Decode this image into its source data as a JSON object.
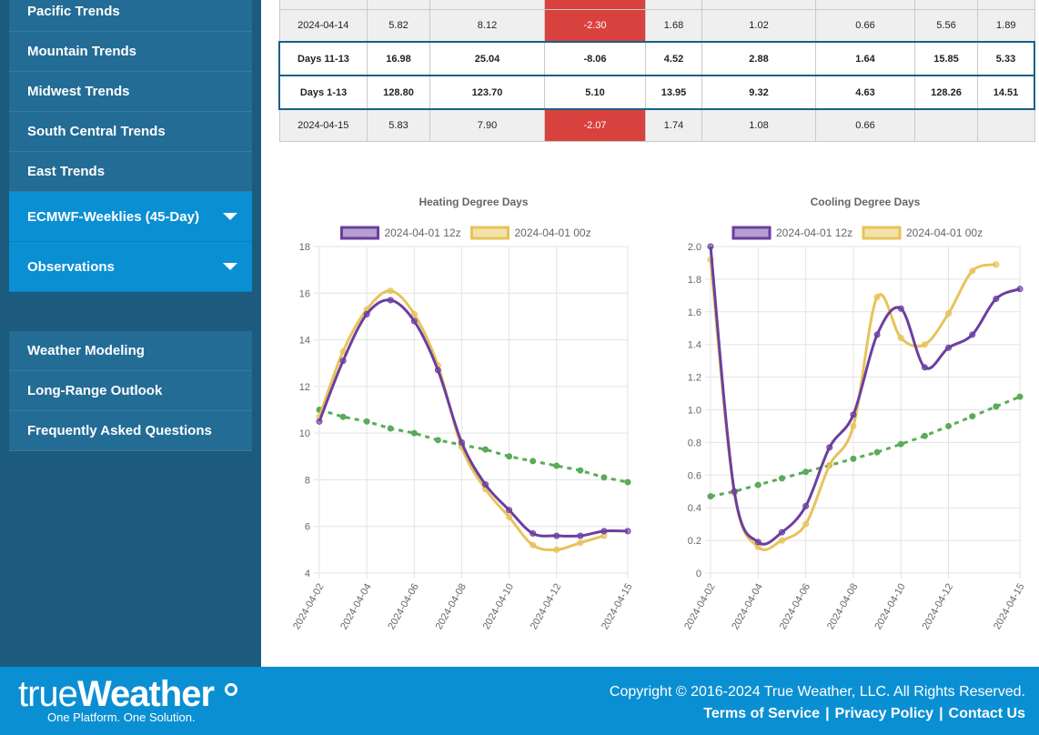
{
  "sidebar": {
    "group1": [
      {
        "label": "Pacific Trends",
        "active": false
      },
      {
        "label": "Mountain Trends",
        "active": false
      },
      {
        "label": "Midwest Trends",
        "active": false
      },
      {
        "label": "South Central Trends",
        "active": false
      },
      {
        "label": "East Trends",
        "active": false
      },
      {
        "label": "ECMWF-Weeklies (45-Day)",
        "active": true
      },
      {
        "label": "Observations",
        "active": true
      }
    ],
    "group2": [
      {
        "label": "Weather Modeling"
      },
      {
        "label": "Long-Range Outlook"
      },
      {
        "label": "Frequently Asked Questions"
      }
    ]
  },
  "table": {
    "rows": [
      {
        "cells": [
          "",
          "",
          "",
          "",
          "",
          "",
          "",
          "",
          ""
        ],
        "neg": 3,
        "highlight": false
      },
      {
        "cells": [
          "2024-04-14",
          "5.82",
          "8.12",
          "-2.30",
          "1.68",
          "1.02",
          "0.66",
          "5.56",
          "1.89"
        ],
        "neg": 3,
        "highlight": false
      },
      {
        "cells": [
          "Days 11-13",
          "16.98",
          "25.04",
          "-8.06",
          "4.52",
          "2.88",
          "1.64",
          "15.85",
          "5.33"
        ],
        "neg": -1,
        "highlight": true
      },
      {
        "cells": [
          "Days 1-13",
          "128.80",
          "123.70",
          "5.10",
          "13.95",
          "9.32",
          "4.63",
          "128.26",
          "14.51"
        ],
        "neg": -1,
        "highlight": true
      },
      {
        "cells": [
          "2024-04-15",
          "5.83",
          "7.90",
          "-2.07",
          "1.74",
          "1.08",
          "0.66",
          "",
          ""
        ],
        "neg": 3,
        "highlight": false
      }
    ]
  },
  "chart_data": [
    {
      "type": "line",
      "title": "Heating Degree Days",
      "x": [
        "2024-04-02",
        "2024-04-03",
        "2024-04-04",
        "2024-04-05",
        "2024-04-06",
        "2024-04-07",
        "2024-04-08",
        "2024-04-09",
        "2024-04-10",
        "2024-04-11",
        "2024-04-12",
        "2024-04-13",
        "2024-04-14",
        "2024-04-15"
      ],
      "x_tick_labels": [
        "2024-04-02",
        "2024-04-04",
        "2024-04-06",
        "2024-04-08",
        "2024-04-10",
        "2024-04-12",
        "2024-04-15"
      ],
      "ylim": [
        4,
        18
      ],
      "y_ticks": [
        4,
        6,
        8,
        10,
        12,
        14,
        16,
        18
      ],
      "grid": true,
      "legend": "top",
      "series": [
        {
          "name": "2024-04-01 12z",
          "color": "#6b3fa0",
          "dashed": false,
          "values": [
            10.5,
            13.1,
            15.1,
            15.7,
            14.8,
            12.7,
            9.6,
            7.8,
            6.7,
            5.7,
            5.6,
            5.6,
            5.8,
            5.8
          ]
        },
        {
          "name": "2024-04-01 00z",
          "color": "#e8c35a",
          "dashed": false,
          "values": [
            10.7,
            13.5,
            15.3,
            16.1,
            15.1,
            12.9,
            9.4,
            7.6,
            6.4,
            5.2,
            5.0,
            5.3,
            5.6,
            null
          ]
        },
        {
          "name": "",
          "color": "#5aab5a",
          "dashed": true,
          "values": [
            11.0,
            10.7,
            10.5,
            10.2,
            10.0,
            9.7,
            9.5,
            9.3,
            9.0,
            8.8,
            8.6,
            8.4,
            8.1,
            7.9
          ]
        }
      ]
    },
    {
      "type": "line",
      "title": "Cooling Degree Days",
      "x": [
        "2024-04-02",
        "2024-04-03",
        "2024-04-04",
        "2024-04-05",
        "2024-04-06",
        "2024-04-07",
        "2024-04-08",
        "2024-04-09",
        "2024-04-10",
        "2024-04-11",
        "2024-04-12",
        "2024-04-13",
        "2024-04-14",
        "2024-04-15"
      ],
      "x_tick_labels": [
        "2024-04-02",
        "2024-04-04",
        "2024-04-06",
        "2024-04-08",
        "2024-04-10",
        "2024-04-12",
        "2024-04-15"
      ],
      "ylim": [
        0,
        2.0
      ],
      "y_ticks": [
        "0",
        "0.2",
        "0.4",
        "0.6",
        "0.8",
        "1.0",
        "1.2",
        "1.4",
        "1.6",
        "1.8",
        "2.0"
      ],
      "grid": true,
      "legend": "top",
      "series": [
        {
          "name": "2024-04-01 12z",
          "color": "#6b3fa0",
          "dashed": false,
          "values": [
            2.0,
            0.5,
            0.19,
            0.25,
            0.41,
            0.77,
            0.97,
            1.46,
            1.62,
            1.26,
            1.38,
            1.46,
            1.68,
            1.74
          ]
        },
        {
          "name": "2024-04-01 00z",
          "color": "#e8c35a",
          "dashed": false,
          "values": [
            1.92,
            0.49,
            0.16,
            0.2,
            0.3,
            0.66,
            0.9,
            1.69,
            1.44,
            1.4,
            1.59,
            1.85,
            1.89,
            null
          ]
        },
        {
          "name": "",
          "color": "#5aab5a",
          "dashed": true,
          "values": [
            0.47,
            0.5,
            0.54,
            0.58,
            0.62,
            0.66,
            0.7,
            0.74,
            0.79,
            0.84,
            0.9,
            0.96,
            1.02,
            1.08
          ]
        }
      ]
    }
  ],
  "footer": {
    "logo_thin": "true",
    "logo_bold": "Weather",
    "tagline": "One Platform. One Solution.",
    "copyright": "Copyright © 2016-2024 True Weather, LLC. All Rights Reserved.",
    "links": [
      "Terms of Service",
      "Privacy Policy",
      "Contact Us"
    ]
  }
}
